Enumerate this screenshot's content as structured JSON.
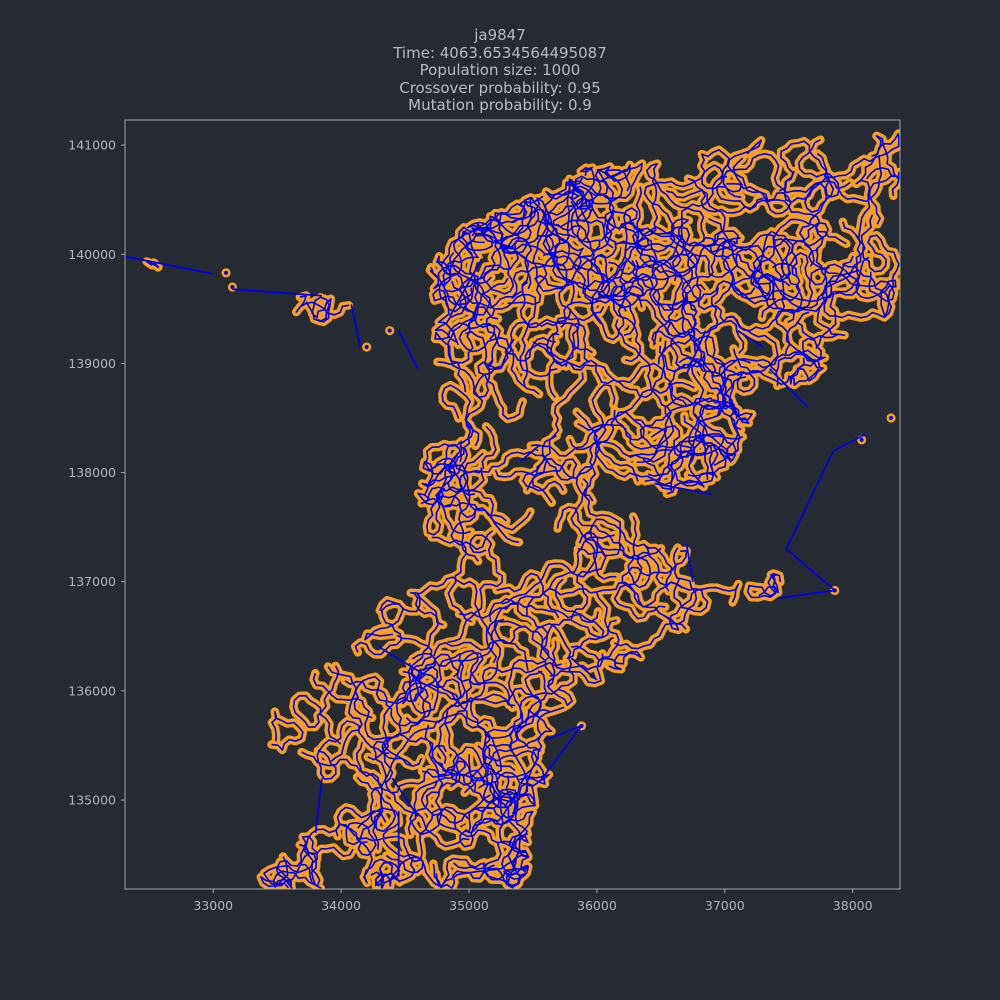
{
  "chart_data": {
    "type": "line",
    "title_lines": [
      "ja9847",
      "Time: 4063.6534564495087",
      "Population size: 1000",
      "Crossover probability: 0.95",
      "Mutation probability: 0.9"
    ],
    "xlabel": "",
    "ylabel": "",
    "xlim": [
      32310,
      38370
    ],
    "ylim": [
      134185,
      141230
    ],
    "x_ticks": [
      33000,
      34000,
      35000,
      36000,
      37000,
      38000
    ],
    "y_ticks": [
      135000,
      136000,
      137000,
      138000,
      139000,
      140000,
      141000
    ],
    "grid": false,
    "series": [
      {
        "role": "cities",
        "marker_color": "#f5a020",
        "outline": [
          [
            32310,
            139980
          ],
          [
            33000,
            139820
          ],
          [
            33150,
            139680
          ],
          [
            33850,
            139620
          ],
          [
            34080,
            139540
          ],
          [
            34220,
            139150
          ],
          [
            34500,
            139300
          ],
          [
            34680,
            138850
          ],
          [
            34750,
            139400
          ],
          [
            34680,
            139880
          ],
          [
            34950,
            140250
          ],
          [
            35350,
            140480
          ],
          [
            35700,
            140620
          ],
          [
            35900,
            140800
          ],
          [
            36200,
            140820
          ],
          [
            36600,
            140850
          ],
          [
            36950,
            141000
          ],
          [
            37450,
            141080
          ],
          [
            37900,
            141050
          ],
          [
            38370,
            141180
          ],
          [
            38370,
            139450
          ],
          [
            38000,
            139300
          ],
          [
            37700,
            138850
          ],
          [
            37300,
            138700
          ],
          [
            37200,
            138350
          ],
          [
            37000,
            138000
          ],
          [
            36750,
            137800
          ],
          [
            36700,
            137400
          ],
          [
            36900,
            137000
          ],
          [
            37300,
            136980
          ],
          [
            37500,
            137300
          ],
          [
            37400,
            136800
          ],
          [
            36800,
            136650
          ],
          [
            36500,
            136400
          ],
          [
            36200,
            136200
          ],
          [
            35900,
            136000
          ],
          [
            35650,
            135700
          ],
          [
            35650,
            135200
          ],
          [
            35500,
            134900
          ],
          [
            35450,
            134185
          ],
          [
            33250,
            134185
          ],
          [
            33600,
            134550
          ],
          [
            33850,
            134850
          ],
          [
            33700,
            135200
          ],
          [
            33450,
            135500
          ],
          [
            33450,
            135800
          ],
          [
            33700,
            136100
          ],
          [
            34050,
            136350
          ],
          [
            34300,
            136650
          ],
          [
            34300,
            136900
          ],
          [
            34600,
            136900
          ],
          [
            34700,
            137300
          ],
          [
            34600,
            137800
          ],
          [
            34650,
            138200
          ],
          [
            35000,
            138400
          ],
          [
            34700,
            138750
          ],
          [
            34550,
            139100
          ]
        ],
        "outliers": [
          [
            37860,
            136920
          ],
          [
            38070,
            138300
          ],
          [
            38300,
            138500
          ],
          [
            35880,
            135680
          ],
          [
            34200,
            139150
          ],
          [
            34380,
            139300
          ],
          [
            33100,
            139830
          ],
          [
            33150,
            139700
          ]
        ]
      },
      {
        "role": "tour",
        "line_color": "#0000e6",
        "long_edges": [
          [
            [
              32310,
              139980
            ],
            [
              33000,
              139820
            ]
          ],
          [
            [
              33150,
              139680
            ],
            [
              33850,
              139620
            ]
          ],
          [
            [
              34080,
              139540
            ],
            [
              34150,
              139150
            ]
          ],
          [
            [
              34450,
              139300
            ],
            [
              34600,
              138950
            ]
          ],
          [
            [
              34850,
              139430
            ],
            [
              35100,
              139960
            ]
          ],
          [
            [
              37860,
              136920
            ],
            [
              37480,
              137300
            ]
          ],
          [
            [
              37860,
              136920
            ],
            [
              37420,
              136850
            ]
          ],
          [
            [
              37480,
              137300
            ],
            [
              37850,
              138200
            ]
          ],
          [
            [
              37850,
              138200
            ],
            [
              38100,
              138350
            ]
          ],
          [
            [
              37650,
              138600
            ],
            [
              37350,
              138950
            ]
          ],
          [
            [
              35880,
              135680
            ],
            [
              35560,
              135180
            ]
          ],
          [
            [
              35880,
              135680
            ],
            [
              35600,
              135550
            ]
          ],
          [
            [
              34400,
              135200
            ],
            [
              34600,
              134850
            ]
          ],
          [
            [
              34450,
              134900
            ],
            [
              34450,
              134300
            ]
          ],
          [
            [
              33850,
              135200
            ],
            [
              33800,
              134700
            ]
          ],
          [
            [
              36850,
              139300
            ],
            [
              36700,
              138900
            ]
          ],
          [
            [
              37100,
              139300
            ],
            [
              37300,
              139150
            ]
          ],
          [
            [
              35400,
              138100
            ],
            [
              35550,
              138250
            ]
          ],
          [
            [
              36450,
              137900
            ],
            [
              36900,
              137800
            ]
          ],
          [
            [
              36700,
              137350
            ],
            [
              36750,
              137000
            ]
          ],
          [
            [
              36000,
              136100
            ],
            [
              35800,
              136300
            ]
          ],
          [
            [
              34300,
              136400
            ],
            [
              34650,
              136150
            ]
          ]
        ]
      }
    ]
  }
}
